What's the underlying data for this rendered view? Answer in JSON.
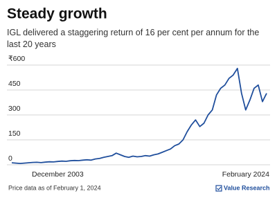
{
  "chart_data": {
    "type": "line",
    "title": "Steady growth",
    "subtitle": "IGL delivered a staggering return of 16 per cent per annum for the last 20 years",
    "categories": [
      null,
      null,
      null,
      null,
      null,
      null,
      null,
      null,
      null,
      null,
      null,
      "December 2003",
      null,
      null,
      null,
      null,
      null,
      null,
      null,
      null,
      null,
      null,
      null,
      null,
      null,
      null,
      null,
      null,
      null,
      null,
      null,
      null,
      null,
      null,
      null,
      null,
      null,
      null,
      null,
      null,
      null,
      null,
      null,
      null,
      null,
      null,
      null,
      null,
      null,
      null,
      null,
      null,
      null,
      null,
      null,
      null,
      "February 2024",
      null,
      null,
      null,
      null,
      null
    ],
    "series": [
      {
        "color": "#1f4e9c",
        "values": [
          12,
          10,
          8,
          10,
          12,
          14,
          15,
          13,
          16,
          18,
          17,
          20,
          22,
          21,
          24,
          26,
          25,
          28,
          30,
          28,
          35,
          38,
          45,
          50,
          55,
          70,
          60,
          50,
          45,
          52,
          48,
          50,
          55,
          52,
          60,
          65,
          75,
          85,
          95,
          115,
          125,
          150,
          200,
          240,
          270,
          230,
          250,
          300,
          330,
          420,
          460,
          480,
          520,
          540,
          580,
          430,
          330,
          390,
          460,
          480,
          380,
          430
        ]
      }
    ],
    "ylim": [
      0,
      600
    ],
    "yticks": [
      0,
      150,
      300,
      450,
      {
        "value": 600,
        "label": "₹600"
      }
    ],
    "grid": true,
    "source": "Price data as of February 1, 2024",
    "logo": "Value Research"
  }
}
